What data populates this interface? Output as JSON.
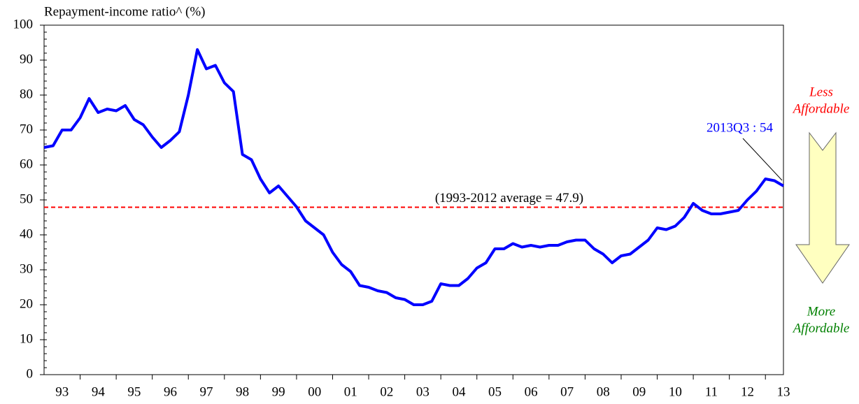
{
  "chart_data": {
    "type": "line",
    "y_label": "Repayment-income ratio^ (%)",
    "categories": [
      null,
      null,
      "93",
      null,
      null,
      null,
      "94",
      null,
      null,
      null,
      "95",
      null,
      null,
      null,
      "96",
      null,
      null,
      null,
      "97",
      null,
      null,
      null,
      "98",
      null,
      null,
      null,
      "99",
      null,
      null,
      null,
      "00",
      null,
      null,
      null,
      "01",
      null,
      null,
      null,
      "02",
      null,
      null,
      null,
      "03",
      null,
      null,
      null,
      "04",
      null,
      null,
      null,
      "05",
      null,
      null,
      null,
      "06",
      null,
      null,
      null,
      "07",
      null,
      null,
      null,
      "08",
      null,
      null,
      null,
      "09",
      null,
      null,
      null,
      "10",
      null,
      null,
      null,
      "11",
      null,
      null,
      null,
      "12",
      null,
      null,
      null,
      "13"
    ],
    "series": [
      {
        "color": "#0000ff",
        "values": [
          65,
          65.5,
          70,
          70,
          73.5,
          79,
          75,
          76,
          75.5,
          77,
          73,
          71.5,
          68,
          65,
          67,
          69.5,
          80,
          93,
          87.5,
          88.5,
          83.5,
          81,
          63,
          61.5,
          56,
          52,
          54,
          51,
          48,
          44,
          42,
          40,
          35,
          31.5,
          29.5,
          25.5,
          25,
          24,
          23.5,
          22,
          21.5,
          20,
          20,
          21,
          26,
          25.5,
          25.5,
          27.5,
          30.5,
          32,
          36,
          36,
          37.5,
          36.5,
          37,
          36.5,
          37,
          37,
          38,
          38.5,
          38.5,
          36,
          34.5,
          32,
          34,
          34.5,
          36.5,
          38.5,
          42,
          41.5,
          42.5,
          45,
          49,
          47,
          46,
          46,
          46.5,
          47,
          50,
          52.5,
          56,
          55.5,
          54
        ]
      }
    ],
    "average": {
      "value": 47.9,
      "label": "(1993-2012 average = 47.9)",
      "color": "#ff0000"
    },
    "latest_label": "2013Q3 : 54",
    "less_affordable": {
      "lines": [
        "Less",
        "Affordable"
      ],
      "color": "#ff0000"
    },
    "more_affordable": {
      "lines": [
        "More",
        "Affordable"
      ],
      "color": "#008000"
    },
    "ylim": [
      0,
      100
    ],
    "yticks": [
      0,
      10,
      20,
      30,
      40,
      50,
      60,
      70,
      80,
      90,
      100
    ]
  }
}
